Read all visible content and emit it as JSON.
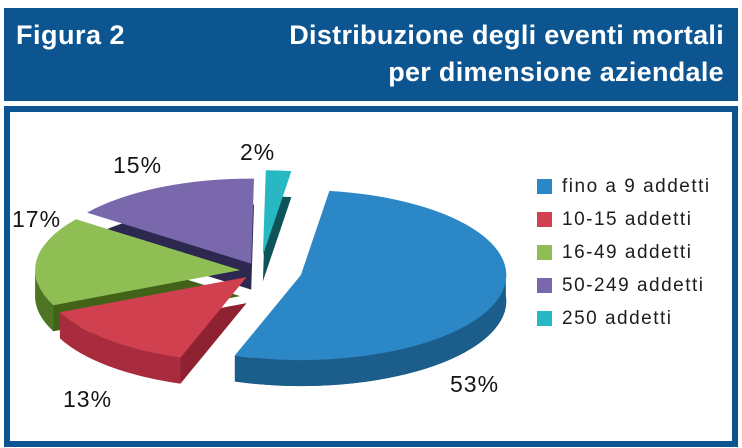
{
  "header": {
    "figure_label": "Figura 2",
    "title_line1": "Distribuzione degli eventi mortali",
    "title_line2": "per dimensione aziendale"
  },
  "colors": {
    "header_bg": "#0D5591",
    "panel_border": "#0D5591",
    "panel_bg": "#FFFFFF",
    "header_text": "#FFFFFF",
    "value_label_text": "#151515",
    "legend_text": "#1D1D1D"
  },
  "chart_data": {
    "type": "pie",
    "style": "3d-exploded",
    "title": "Distribuzione degli eventi mortali per dimensione aziendale",
    "unit": "%",
    "start_angle_deg": 8,
    "legend_position": "right",
    "categories": [
      "fino a 9 addetti",
      "10-15 addetti",
      "16-49 addetti",
      "50-249 addetti",
      "250 addetti"
    ],
    "values": [
      53,
      13,
      17,
      15,
      2
    ],
    "slices": [
      {
        "label": "fino a 9 addetti",
        "value": 53,
        "display": "53%",
        "color": "#2C87C6",
        "side": "#1B5E8C",
        "dark": "#16486B"
      },
      {
        "label": "10-15 addetti",
        "value": 13,
        "display": "13%",
        "color": "#D0404F",
        "side": "#A82C3E",
        "dark": "#8E2233"
      },
      {
        "label": "16-49 addetti",
        "value": 17,
        "display": "17%",
        "color": "#8FBE55",
        "side": "#4E7524",
        "dark": "#426317"
      },
      {
        "label": "50-249 addetti",
        "value": 15,
        "display": "15%",
        "color": "#7968AC",
        "side": "#353058",
        "dark": "#2C2850"
      },
      {
        "label": "250 addetti",
        "value": 2,
        "display": "2%",
        "color": "#28B8C4",
        "side": "#157278",
        "dark": "#0E5358"
      }
    ]
  }
}
